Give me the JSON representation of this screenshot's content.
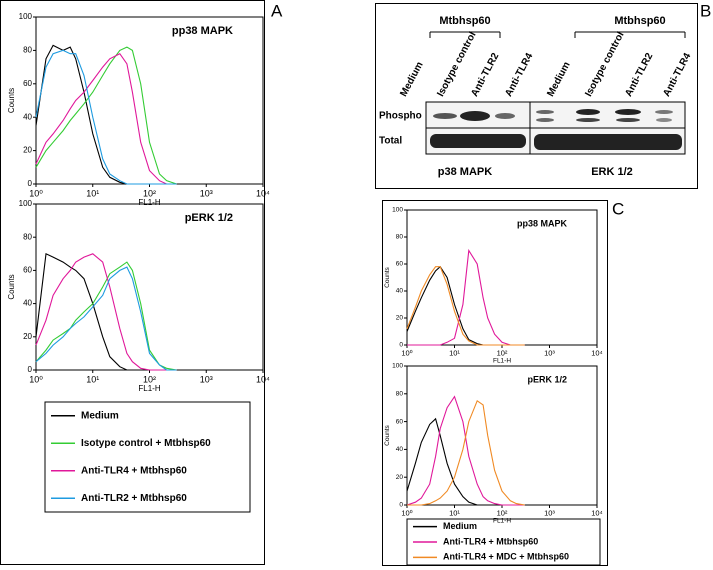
{
  "chart_data": [
    {
      "type": "line",
      "title": "pp38 MAPK",
      "xlabel": "FL1-H",
      "ylabel": "Counts",
      "xscale": "log",
      "xlim": [
        1,
        10000
      ],
      "xticks": [
        {
          "value": 1,
          "label": "10⁰"
        },
        {
          "value": 10,
          "label": "10¹"
        },
        {
          "value": 100,
          "label": "10²"
        },
        {
          "value": 1000,
          "label": "10³"
        },
        {
          "value": 10000,
          "label": "10⁴"
        }
      ],
      "ylim": [
        0,
        100
      ],
      "yticks": [
        0,
        20,
        40,
        60,
        80,
        100
      ],
      "x": [
        1,
        1.5,
        2,
        3,
        4,
        5,
        7,
        10,
        15,
        20,
        30,
        40,
        50,
        70,
        100,
        150,
        200,
        300
      ],
      "series": [
        {
          "name": "Medium",
          "color": "#000000",
          "values": [
            35,
            75,
            83,
            80,
            82,
            75,
            55,
            30,
            10,
            4,
            1,
            0,
            0,
            0,
            0,
            0,
            0,
            0
          ]
        },
        {
          "name": "Isotype control + Mtbhsp60",
          "color": "#33cc33",
          "values": [
            10,
            20,
            25,
            32,
            38,
            42,
            48,
            55,
            65,
            72,
            80,
            82,
            80,
            60,
            25,
            6,
            2,
            0
          ]
        },
        {
          "name": "Anti-TLR4 + Mtbhsp60",
          "color": "#e0189a",
          "values": [
            12,
            25,
            30,
            38,
            45,
            50,
            55,
            62,
            70,
            75,
            78,
            72,
            55,
            25,
            8,
            2,
            0,
            0
          ]
        },
        {
          "name": "Anti-TLR2 + Mtbhsp60",
          "color": "#1e9be0",
          "values": [
            40,
            70,
            78,
            80,
            78,
            78,
            65,
            40,
            15,
            6,
            2,
            0,
            0,
            0,
            0,
            0,
            0,
            0
          ]
        }
      ]
    },
    {
      "type": "line",
      "title": "pERK 1/2",
      "xlabel": "FL1-H",
      "ylabel": "Counts",
      "xscale": "log",
      "xlim": [
        1,
        10000
      ],
      "xticks": [
        {
          "value": 1,
          "label": "10⁰"
        },
        {
          "value": 10,
          "label": "10¹"
        },
        {
          "value": 100,
          "label": "10²"
        },
        {
          "value": 1000,
          "label": "10³"
        },
        {
          "value": 10000,
          "label": "10⁴"
        }
      ],
      "ylim": [
        0,
        100
      ],
      "yticks": [
        0,
        20,
        40,
        60,
        80,
        100
      ],
      "x": [
        1,
        1.5,
        2,
        3,
        4,
        5,
        7,
        10,
        15,
        20,
        30,
        40,
        50,
        70,
        100,
        150,
        200,
        300
      ],
      "series": [
        {
          "color": "#000000",
          "values": [
            20,
            70,
            68,
            65,
            62,
            60,
            55,
            40,
            20,
            8,
            2,
            0,
            0,
            0,
            0,
            0,
            0,
            0
          ]
        },
        {
          "color": "#33cc33",
          "values": [
            5,
            12,
            18,
            22,
            25,
            30,
            35,
            40,
            50,
            58,
            62,
            65,
            60,
            40,
            12,
            3,
            1,
            0
          ]
        },
        {
          "color": "#e0189a",
          "values": [
            15,
            30,
            45,
            55,
            60,
            65,
            68,
            70,
            65,
            50,
            25,
            10,
            5,
            1,
            0,
            0,
            0,
            0
          ]
        },
        {
          "color": "#1e9be0",
          "values": [
            5,
            10,
            15,
            20,
            25,
            28,
            32,
            38,
            45,
            55,
            60,
            62,
            55,
            35,
            10,
            3,
            0,
            0
          ]
        }
      ]
    },
    {
      "type": "line",
      "title": "pp38 MAPK",
      "xlabel": "FL1-H",
      "ylabel": "Counts",
      "xscale": "log",
      "xlim": [
        1,
        10000
      ],
      "xticks": [
        {
          "value": 1,
          "label": "10⁰"
        },
        {
          "value": 10,
          "label": "10¹"
        },
        {
          "value": 100,
          "label": "10²"
        },
        {
          "value": 1000,
          "label": "10³"
        },
        {
          "value": 10000,
          "label": "10⁴"
        }
      ],
      "ylim": [
        0,
        100
      ],
      "yticks": [
        0,
        20,
        40,
        60,
        80,
        100
      ],
      "x": [
        1,
        1.5,
        2,
        3,
        4,
        5,
        7,
        10,
        15,
        20,
        30,
        40,
        50,
        70,
        100,
        150,
        200,
        300
      ],
      "series": [
        {
          "name": "Medium",
          "color": "#000000",
          "values": [
            10,
            25,
            35,
            48,
            55,
            58,
            50,
            30,
            12,
            4,
            1,
            0,
            0,
            0,
            0,
            0,
            0,
            0
          ]
        },
        {
          "name": "Anti-TLR4 + Mtbhsp60",
          "color": "#e0189a",
          "values": [
            0,
            0,
            0,
            0,
            0,
            0,
            2,
            5,
            30,
            70,
            60,
            35,
            20,
            8,
            2,
            0,
            0,
            0
          ]
        },
        {
          "name": "Anti-TLR4 + MDC + Mtbhsp60",
          "color": "#f08a24",
          "values": [
            12,
            28,
            40,
            52,
            58,
            58,
            45,
            25,
            8,
            3,
            0,
            0,
            0,
            0,
            0,
            0,
            0,
            0
          ]
        }
      ]
    },
    {
      "type": "line",
      "title": "pERK 1/2",
      "xlabel": "FL1-H",
      "ylabel": "Counts",
      "xscale": "log",
      "xlim": [
        1,
        10000
      ],
      "xticks": [
        {
          "value": 1,
          "label": "10⁰"
        },
        {
          "value": 10,
          "label": "10¹"
        },
        {
          "value": 100,
          "label": "10²"
        },
        {
          "value": 1000,
          "label": "10³"
        },
        {
          "value": 10000,
          "label": "10⁴"
        }
      ],
      "ylim": [
        0,
        100
      ],
      "yticks": [
        0,
        20,
        40,
        60,
        80,
        100
      ],
      "x": [
        1,
        1.5,
        2,
        3,
        4,
        5,
        7,
        10,
        15,
        20,
        30,
        40,
        50,
        70,
        100,
        150,
        200,
        300
      ],
      "series": [
        {
          "color": "#000000",
          "values": [
            10,
            30,
            45,
            58,
            62,
            50,
            30,
            15,
            6,
            2,
            0,
            0,
            0,
            0,
            0,
            0,
            0,
            0
          ]
        },
        {
          "color": "#e0189a",
          "values": [
            0,
            2,
            5,
            15,
            35,
            55,
            70,
            78,
            60,
            35,
            15,
            6,
            3,
            1,
            0,
            0,
            0,
            0
          ]
        },
        {
          "color": "#f08a24",
          "values": [
            0,
            0,
            0,
            1,
            3,
            5,
            10,
            20,
            40,
            60,
            75,
            72,
            50,
            25,
            10,
            3,
            1,
            0
          ]
        }
      ]
    }
  ],
  "panel_labels": [
    "A",
    "B",
    "C"
  ],
  "blot": {
    "groups": [
      {
        "header": "Mtbhsp60",
        "lanes": [
          "Medium",
          "Isotype control",
          "Anti-TLR2",
          "Anti-TLR4"
        ],
        "label": "p38 MAPK"
      },
      {
        "header": "Mtbhsp60",
        "lanes": [
          "Medium",
          "Isotype control",
          "Anti-TLR2",
          "Anti-TLR4"
        ],
        "label": "ERK 1/2"
      }
    ],
    "rows": [
      "Phospho",
      "Total"
    ]
  }
}
